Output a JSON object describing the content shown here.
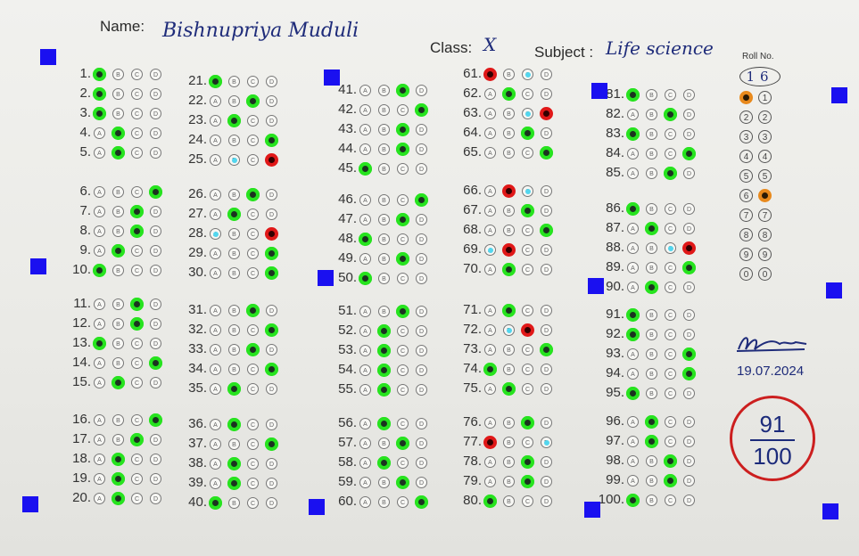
{
  "header": {
    "name_label": "Name:",
    "name_value": "Bishnupriya Muduli",
    "class_label": "Class:",
    "class_value": "X",
    "subject_label": "Subject :",
    "subject_value": "Life science",
    "roll_label": "Roll No.",
    "roll_value": "16"
  },
  "options": [
    "A",
    "B",
    "C",
    "D"
  ],
  "questions": [
    {
      "n": "1.",
      "sel": 0,
      "st": "c"
    },
    {
      "n": "2.",
      "sel": 0,
      "st": "c"
    },
    {
      "n": "3.",
      "sel": 0,
      "st": "c"
    },
    {
      "n": "4.",
      "sel": 1,
      "st": "c"
    },
    {
      "n": "5.",
      "sel": 1,
      "st": "c"
    },
    {
      "n": "6.",
      "sel": 3,
      "st": "c"
    },
    {
      "n": "7.",
      "sel": 2,
      "st": "c"
    },
    {
      "n": "8.",
      "sel": 2,
      "st": "c"
    },
    {
      "n": "9.",
      "sel": 1,
      "st": "c"
    },
    {
      "n": "10.",
      "sel": 0,
      "st": "c"
    },
    {
      "n": "11.",
      "sel": 2,
      "st": "c"
    },
    {
      "n": "12.",
      "sel": 2,
      "st": "c"
    },
    {
      "n": "13.",
      "sel": 0,
      "st": "c"
    },
    {
      "n": "14.",
      "sel": 3,
      "st": "c"
    },
    {
      "n": "15.",
      "sel": 1,
      "st": "c"
    },
    {
      "n": "16.",
      "sel": 3,
      "st": "c"
    },
    {
      "n": "17.",
      "sel": 2,
      "st": "c"
    },
    {
      "n": "18.",
      "sel": 1,
      "st": "c"
    },
    {
      "n": "19.",
      "sel": 1,
      "st": "c"
    },
    {
      "n": "20.",
      "sel": 1,
      "st": "c"
    },
    {
      "n": "21.",
      "sel": 0,
      "st": "c"
    },
    {
      "n": "22.",
      "sel": 2,
      "st": "c"
    },
    {
      "n": "23.",
      "sel": 1,
      "st": "c"
    },
    {
      "n": "24.",
      "sel": 3,
      "st": "c"
    },
    {
      "n": "25.",
      "sel": 3,
      "st": "w",
      "key": 1
    },
    {
      "n": "26.",
      "sel": 2,
      "st": "c"
    },
    {
      "n": "27.",
      "sel": 1,
      "st": "c"
    },
    {
      "n": "28.",
      "sel": 3,
      "st": "w",
      "key": 0
    },
    {
      "n": "29.",
      "sel": 3,
      "st": "c"
    },
    {
      "n": "30.",
      "sel": 3,
      "st": "c"
    },
    {
      "n": "31.",
      "sel": 2,
      "st": "c"
    },
    {
      "n": "32.",
      "sel": 3,
      "st": "c"
    },
    {
      "n": "33.",
      "sel": 2,
      "st": "c"
    },
    {
      "n": "34.",
      "sel": 3,
      "st": "c"
    },
    {
      "n": "35.",
      "sel": 1,
      "st": "c"
    },
    {
      "n": "36.",
      "sel": 1,
      "st": "c"
    },
    {
      "n": "37.",
      "sel": 3,
      "st": "c"
    },
    {
      "n": "38.",
      "sel": 1,
      "st": "c"
    },
    {
      "n": "39.",
      "sel": 1,
      "st": "c"
    },
    {
      "n": "40.",
      "sel": 0,
      "st": "c"
    },
    {
      "n": "41.",
      "sel": 2,
      "st": "c"
    },
    {
      "n": "42.",
      "sel": 3,
      "st": "c"
    },
    {
      "n": "43.",
      "sel": 2,
      "st": "c"
    },
    {
      "n": "44.",
      "sel": 2,
      "st": "c"
    },
    {
      "n": "45.",
      "sel": 0,
      "st": "c"
    },
    {
      "n": "46.",
      "sel": 3,
      "st": "c"
    },
    {
      "n": "47.",
      "sel": 2,
      "st": "c"
    },
    {
      "n": "48.",
      "sel": 0,
      "st": "c"
    },
    {
      "n": "49.",
      "sel": 2,
      "st": "c"
    },
    {
      "n": "50.",
      "sel": 0,
      "st": "c"
    },
    {
      "n": "51.",
      "sel": 2,
      "st": "c"
    },
    {
      "n": "52.",
      "sel": 1,
      "st": "c"
    },
    {
      "n": "53.",
      "sel": 1,
      "st": "c"
    },
    {
      "n": "54.",
      "sel": 1,
      "st": "c"
    },
    {
      "n": "55.",
      "sel": 1,
      "st": "c"
    },
    {
      "n": "56.",
      "sel": 1,
      "st": "c"
    },
    {
      "n": "57.",
      "sel": 2,
      "st": "c"
    },
    {
      "n": "58.",
      "sel": 1,
      "st": "c"
    },
    {
      "n": "59.",
      "sel": 2,
      "st": "c"
    },
    {
      "n": "60.",
      "sel": 3,
      "st": "c"
    },
    {
      "n": "61.",
      "sel": 0,
      "st": "w",
      "key": 2
    },
    {
      "n": "62.",
      "sel": 1,
      "st": "c"
    },
    {
      "n": "63.",
      "sel": 3,
      "st": "w",
      "key": 2
    },
    {
      "n": "64.",
      "sel": 2,
      "st": "c"
    },
    {
      "n": "65.",
      "sel": 3,
      "st": "c"
    },
    {
      "n": "66.",
      "sel": 1,
      "st": "w",
      "key": 2
    },
    {
      "n": "67.",
      "sel": 2,
      "st": "c"
    },
    {
      "n": "68.",
      "sel": 3,
      "st": "c"
    },
    {
      "n": "69.",
      "sel": 1,
      "st": "w",
      "key": 0
    },
    {
      "n": "70.",
      "sel": 1,
      "st": "c"
    },
    {
      "n": "71.",
      "sel": 1,
      "st": "c"
    },
    {
      "n": "72.",
      "sel": 2,
      "st": "w",
      "key": 1
    },
    {
      "n": "73.",
      "sel": 3,
      "st": "c"
    },
    {
      "n": "74.",
      "sel": 0,
      "st": "c"
    },
    {
      "n": "75.",
      "sel": 1,
      "st": "c"
    },
    {
      "n": "76.",
      "sel": 2,
      "st": "c"
    },
    {
      "n": "77.",
      "sel": 0,
      "st": "w",
      "key": 3
    },
    {
      "n": "78.",
      "sel": 2,
      "st": "c"
    },
    {
      "n": "79.",
      "sel": 2,
      "st": "c"
    },
    {
      "n": "80.",
      "sel": 0,
      "st": "c"
    },
    {
      "n": "81.",
      "sel": 0,
      "st": "c"
    },
    {
      "n": "82.",
      "sel": 2,
      "st": "c"
    },
    {
      "n": "83.",
      "sel": 0,
      "st": "c"
    },
    {
      "n": "84.",
      "sel": 3,
      "st": "c"
    },
    {
      "n": "85.",
      "sel": 2,
      "st": "c"
    },
    {
      "n": "86.",
      "sel": 0,
      "st": "c"
    },
    {
      "n": "87.",
      "sel": 1,
      "st": "c"
    },
    {
      "n": "88.",
      "sel": 3,
      "st": "w",
      "key": 2
    },
    {
      "n": "89.",
      "sel": 3,
      "st": "c"
    },
    {
      "n": "90.",
      "sel": 1,
      "st": "c"
    },
    {
      "n": "91.",
      "sel": 0,
      "st": "c"
    },
    {
      "n": "92.",
      "sel": 0,
      "st": "c"
    },
    {
      "n": "93.",
      "sel": 3,
      "st": "c"
    },
    {
      "n": "94.",
      "sel": 3,
      "st": "c"
    },
    {
      "n": "95.",
      "sel": 0,
      "st": "c"
    },
    {
      "n": "96.",
      "sel": 1,
      "st": "c"
    },
    {
      "n": "97.",
      "sel": 1,
      "st": "c"
    },
    {
      "n": "98.",
      "sel": 2,
      "st": "c"
    },
    {
      "n": "99.",
      "sel": 2,
      "st": "c"
    },
    {
      "n": "100.",
      "sel": 0,
      "st": "c"
    }
  ],
  "roll_digits": [
    "0",
    "1",
    "2",
    "3",
    "4",
    "5",
    "6",
    "7",
    "8",
    "9"
  ],
  "roll_rows": [
    "1",
    "2",
    "3",
    "4",
    "5",
    "6",
    "7",
    "8",
    "9",
    "0"
  ],
  "roll_selected": {
    "left": 0,
    "right": 5
  },
  "signature": "B.B.Saha",
  "date": "19.07.2024",
  "score": {
    "obtained": "91",
    "total": "100"
  },
  "colors": {
    "correct": "#27e31f",
    "wrong": "#e01818",
    "answer_key": "#53d6ee",
    "roll": "#e8891c",
    "markers": "#1a10f0",
    "score_ring": "#cc1f1f",
    "score_text": "#1b2a7a"
  }
}
